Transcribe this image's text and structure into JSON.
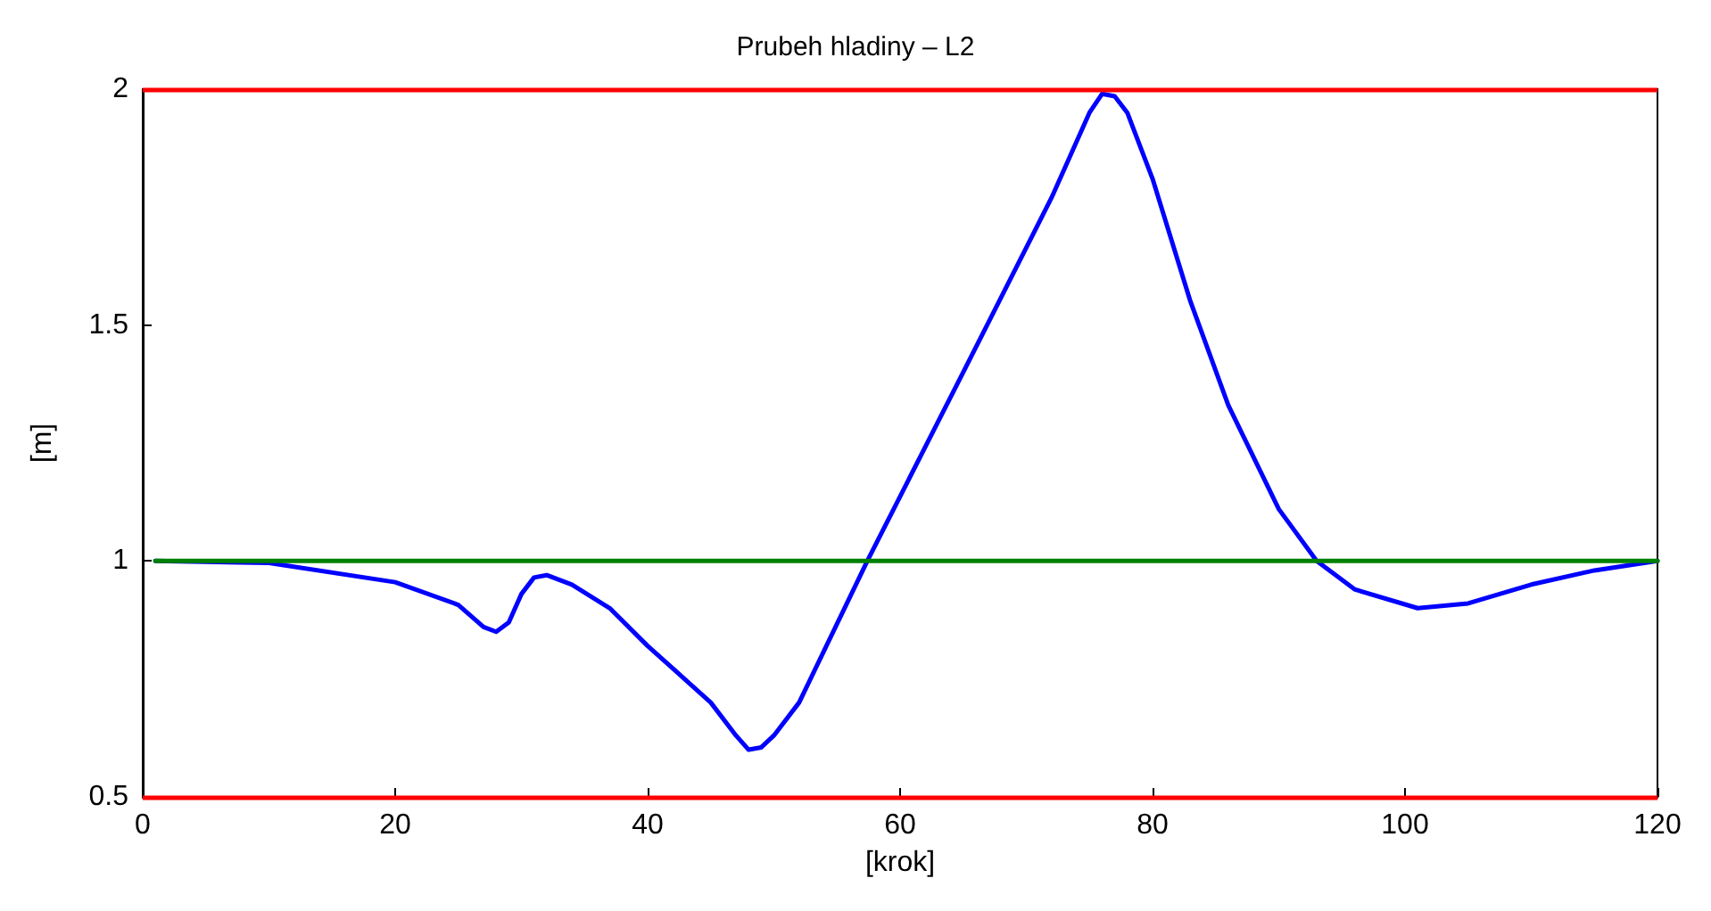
{
  "chart_data": {
    "type": "line",
    "title": "Prubeh hladiny – L2",
    "xlabel": "[krok]",
    "ylabel": "[m]",
    "xlim": [
      0,
      120
    ],
    "xticks": [
      0,
      20,
      40,
      60,
      80,
      100,
      120
    ],
    "ylim": [
      0.5,
      2
    ],
    "yticks": [
      0.5,
      1,
      1.5,
      2
    ],
    "grid": false,
    "marker": "none",
    "line_style": "solid",
    "series": [
      {
        "color": "#0000ff",
        "x": [
          1,
          10,
          20,
          25,
          27,
          28,
          29,
          30,
          31,
          32,
          34,
          37,
          40,
          45,
          47,
          48,
          49,
          50,
          52,
          57.4,
          65,
          72,
          75,
          76,
          77,
          78,
          80,
          83,
          86,
          90,
          93,
          96,
          101,
          105,
          110,
          115,
          120
        ],
        "values": [
          1.0,
          0.996,
          0.955,
          0.907,
          0.86,
          0.85,
          0.87,
          0.93,
          0.965,
          0.97,
          0.95,
          0.9,
          0.82,
          0.7,
          0.63,
          0.6,
          0.605,
          0.63,
          0.7,
          1.0,
          1.4,
          1.77,
          1.95,
          1.99,
          1.985,
          1.95,
          1.81,
          1.55,
          1.33,
          1.11,
          1.0,
          0.94,
          0.9,
          0.91,
          0.95,
          0.98,
          1.0
        ]
      },
      {
        "color": "#008000",
        "x": [
          1,
          120
        ],
        "values": [
          1,
          1
        ]
      }
    ],
    "ref_lines": [
      {
        "axis": "y",
        "value": 2,
        "color": "#ff0000"
      },
      {
        "axis": "y",
        "value": 0.5,
        "color": "#ff0000"
      }
    ]
  }
}
